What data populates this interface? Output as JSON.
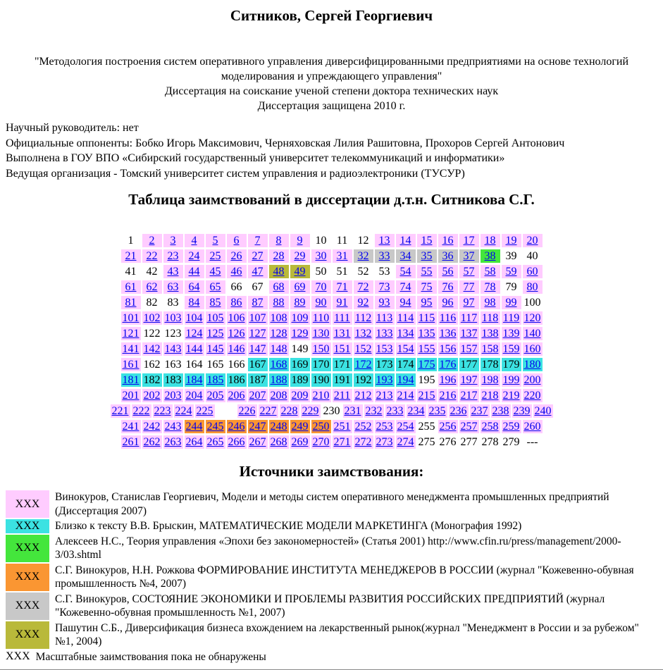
{
  "header": {
    "title": "Ситников, Сергей Георгиевич",
    "quote": "\"Методология построения систем оперативного управления диверсифицированными предприятиями на основе технологий моделирования и упреждающего управления\"",
    "degree_line": "Диссертация на соискание ученой степени доктора технических наук",
    "defense_line": "Диссертация защищена 2010 г.",
    "info_lines": [
      "Научный руководитель: нет",
      "Официальные оппоненты: Бобко Игорь Максимович, Черняховская Лилия Рашитовна, Прохоров Сергей Антонович",
      "Выполнена в ГОУ ВПО «Сибирский государственный университет телекоммуникаций и информатики»",
      "Ведущая организация - Томский университет систем управления и радиоэлектроники (ТУСУР)"
    ]
  },
  "palette": {
    "pink": "#ffccff",
    "cyan": "#3be2e2",
    "green": "#44e63c",
    "orange": "#fa9632",
    "gray": "#c8c8c8",
    "olive": "#b9b93a",
    "link": "#0000ee",
    "text": "#000000"
  },
  "table": {
    "title": "Таблица заимствований в диссертации д.т.н. Ситникова С.Г.",
    "rows": [
      [
        {
          "n": 1
        },
        {
          "f": 2,
          "t": 9,
          "c": "pink",
          "l": true
        },
        {
          "n": 10
        },
        {
          "n": 11
        },
        {
          "n": 12
        },
        {
          "f": 13,
          "t": 20,
          "c": "pink",
          "l": true
        }
      ],
      [
        {
          "f": 21,
          "t": 31,
          "c": "pink",
          "l": true
        },
        {
          "f": 32,
          "t": 37,
          "c": "gray",
          "l": true
        },
        {
          "n": 38,
          "c": "green",
          "l": true
        },
        {
          "n": 39
        },
        {
          "n": 40
        }
      ],
      [
        {
          "n": 41
        },
        {
          "n": 42
        },
        {
          "f": 43,
          "t": 47,
          "c": "pink",
          "l": true
        },
        {
          "f": 48,
          "t": 49,
          "c": "olive",
          "l": true
        },
        {
          "n": 50
        },
        {
          "n": 51
        },
        {
          "n": 52
        },
        {
          "n": 53
        },
        {
          "f": 54,
          "t": 60,
          "c": "pink",
          "l": true
        }
      ],
      [
        {
          "f": 61,
          "t": 65,
          "c": "pink",
          "l": true
        },
        {
          "n": 66
        },
        {
          "n": 67
        },
        {
          "f": 68,
          "t": 78,
          "c": "pink",
          "l": true
        },
        {
          "n": 79
        },
        {
          "n": 80,
          "c": "pink",
          "l": true
        }
      ],
      [
        {
          "n": 81,
          "c": "pink",
          "l": true
        },
        {
          "n": 82
        },
        {
          "n": 83
        },
        {
          "f": 84,
          "t": 99,
          "c": "pink",
          "l": true
        },
        {
          "n": 100
        }
      ],
      [
        {
          "f": 101,
          "t": 120,
          "c": "pink",
          "l": true
        }
      ],
      [
        {
          "n": 121,
          "c": "pink",
          "l": true
        },
        {
          "n": 122
        },
        {
          "n": 123
        },
        {
          "f": 124,
          "t": 140,
          "c": "pink",
          "l": true
        }
      ],
      [
        {
          "f": 141,
          "t": 148,
          "c": "pink",
          "l": true
        },
        {
          "n": 149
        },
        {
          "f": 150,
          "t": 160,
          "c": "pink",
          "l": true
        }
      ],
      [
        {
          "n": 161,
          "c": "pink",
          "l": true
        },
        {
          "f": 162,
          "t": 166
        },
        {
          "n": 167,
          "c": "cyan"
        },
        {
          "n": 168,
          "c": "cyan",
          "l": true
        },
        {
          "f": 169,
          "t": 171,
          "c": "cyan"
        },
        {
          "n": 172,
          "c": "cyan",
          "l": true
        },
        {
          "f": 173,
          "t": 174,
          "c": "cyan"
        },
        {
          "f": 175,
          "t": 176,
          "c": "cyan",
          "l": true
        },
        {
          "f": 177,
          "t": 179,
          "c": "cyan"
        },
        {
          "n": 180,
          "c": "cyan",
          "l": true
        }
      ],
      [
        {
          "n": 181,
          "c": "cyan",
          "l": true
        },
        {
          "f": 182,
          "t": 183,
          "c": "cyan"
        },
        {
          "f": 184,
          "t": 185,
          "c": "cyan",
          "l": true
        },
        {
          "f": 186,
          "t": 187,
          "c": "cyan"
        },
        {
          "n": 188,
          "c": "cyan",
          "l": true
        },
        {
          "f": 189,
          "t": 192,
          "c": "cyan"
        },
        {
          "f": 193,
          "t": 194,
          "c": "cyan",
          "l": true
        },
        {
          "n": 195
        },
        {
          "f": 196,
          "t": 200,
          "c": "pink",
          "l": true
        }
      ],
      [
        {
          "f": 201,
          "t": 220,
          "c": "pink",
          "l": true
        }
      ],
      [
        {
          "f": 221,
          "t": 225,
          "c": "pink",
          "l": true
        },
        {
          "n": ""
        },
        {
          "f": 226,
          "t": 229,
          "c": "pink",
          "l": true
        },
        {
          "n": 230
        },
        {
          "f": 231,
          "t": 240,
          "c": "pink",
          "l": true
        }
      ],
      [
        {
          "f": 241,
          "t": 243,
          "c": "pink",
          "l": true
        },
        {
          "f": 244,
          "t": 250,
          "c": "orange",
          "l": true
        },
        {
          "f": 251,
          "t": 254,
          "c": "pink",
          "l": true
        },
        {
          "n": 255
        },
        {
          "f": 256,
          "t": 260,
          "c": "pink",
          "l": true
        }
      ],
      [
        {
          "f": 261,
          "t": 274,
          "c": "pink",
          "l": true
        },
        {
          "f": 275,
          "t": 279
        },
        {
          "n": "---"
        }
      ]
    ]
  },
  "sources": {
    "title": "Источники заимствования:",
    "entries": [
      {
        "color": "pink",
        "marker": "XXX",
        "text": "Винокуров, Станислав Георгиевич, Модели и методы систем оперативного менеджмента промышленных предприятий (Диссертация 2007)"
      },
      {
        "color": "cyan",
        "marker": "XXX",
        "text": "Близко к тексту В.В. Брыскин, МАТЕМАТИЧЕСКИЕ МОДЕЛИ МАРКЕТИНГА (Монография 1992)"
      },
      {
        "color": "green",
        "marker": "XXX",
        "text": "Алексеев Н.С., Теория управления «Эпохи без закономерностей» (Статья 2001) http://www.cfin.ru/press/management/2000-3/03.shtml"
      },
      {
        "color": "orange",
        "marker": "XXX",
        "text": "С.Г. Винокуров, Н.Н. Рожкова ФОРМИРОВАНИЕ ИНСТИТУТА МЕНЕДЖЕРОВ В РОССИИ (журнал \"Кожевенно-обувная промышленность №4, 2007)"
      },
      {
        "color": "gray",
        "marker": "XXX",
        "text": "С.Г. Винокуров, СОСТОЯНИЕ ЭКОНОМИКИ И ПРОБЛЕМЫ РАЗВИТИЯ РОССИЙСКИХ ПРЕДПРИЯТИЙ (журнал \"Кожевенно-обувная промышленность №1, 2007)"
      },
      {
        "color": "olive",
        "marker": "XXX",
        "text": "Пашутин С.Б., Диверсификация бизнеса вхождением на лекарственный рынок(журнал \"Менеджмент в России и за рубежом\" №1, 2004)"
      },
      {
        "color": "",
        "marker": "XXX",
        "text": "Масштабные заимствования пока не обнаружены"
      }
    ]
  }
}
